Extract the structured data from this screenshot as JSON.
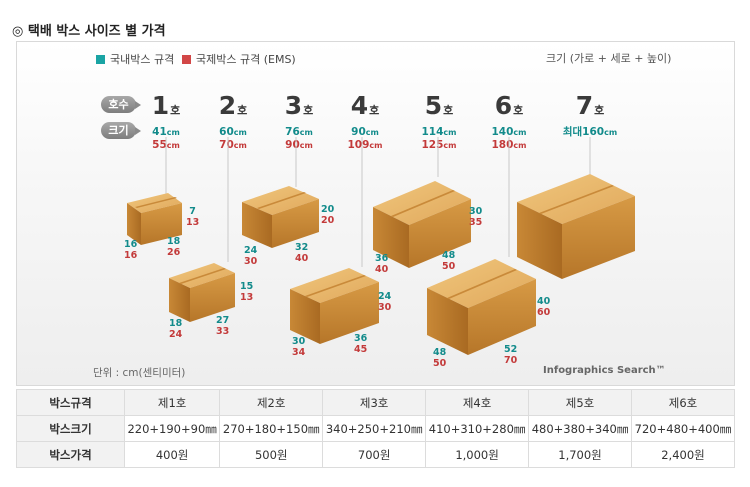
{
  "title": "◎ 택배 박스 사이즈 별 가격",
  "legend": {
    "domestic": {
      "label": "국내박스 규격",
      "color": "#1aa4a4"
    },
    "international": {
      "label": "국제박스 규격 (EMS)",
      "color": "#d24646"
    }
  },
  "measure_note": "크기 (가로 + 세로 + 높이)",
  "row_tags": {
    "number": "호수",
    "size": "크기"
  },
  "sizes": [
    {
      "num": "1",
      "suffix": "호",
      "prefix": "",
      "dom": "41",
      "ems": "55",
      "unit": "cm"
    },
    {
      "num": "2",
      "suffix": "호",
      "prefix": "",
      "dom": "60",
      "ems": "70",
      "unit": "cm"
    },
    {
      "num": "3",
      "suffix": "호",
      "prefix": "",
      "dom": "76",
      "ems": "90",
      "unit": "cm"
    },
    {
      "num": "4",
      "suffix": "호",
      "prefix": "",
      "dom": "90",
      "ems": "109",
      "unit": "cm"
    },
    {
      "num": "5",
      "suffix": "호",
      "prefix": "",
      "dom": "114",
      "ems": "125",
      "unit": "cm"
    },
    {
      "num": "6",
      "suffix": "호",
      "prefix": "",
      "dom": "140",
      "ems": "180",
      "unit": "cm"
    },
    {
      "num": "7",
      "suffix": "호",
      "prefix": "최대",
      "dom": "160",
      "ems": "",
      "unit": "cm"
    }
  ],
  "box_labels": {
    "b1": {
      "h": [
        "7",
        "13"
      ],
      "w": [
        "18",
        "26"
      ],
      "d": [
        "16",
        "16"
      ]
    },
    "b2": {
      "h": [
        "15",
        "13"
      ],
      "w": [
        "27",
        "33"
      ],
      "d": [
        "18",
        "24"
      ]
    },
    "b3": {
      "h": [
        "20",
        "20"
      ],
      "w": [
        "32",
        "40"
      ],
      "d": [
        "24",
        "30"
      ]
    },
    "b4": {
      "h": [
        "24",
        "30"
      ],
      "w": [
        "36",
        "45"
      ],
      "d": [
        "30",
        "34"
      ]
    },
    "b5": {
      "h": [
        "30",
        "35"
      ],
      "w": [
        "48",
        "50"
      ],
      "d": [
        "36",
        "40"
      ]
    },
    "b6": {
      "h": [
        "40",
        "60"
      ],
      "w": [
        "52",
        "70"
      ],
      "d": [
        "48",
        "50"
      ]
    }
  },
  "unit_note": "단위 : cm(센티미터)",
  "credit": "Infographics Search™",
  "table": {
    "headers": [
      "박스규격",
      "제1호",
      "제2호",
      "제3호",
      "제4호",
      "제5호",
      "제6호"
    ],
    "rows": [
      {
        "label": "박스크기",
        "cells": [
          "220+190+90㎜",
          "270+180+150㎜",
          "340+250+210㎜",
          "410+310+280㎜",
          "480+380+340㎜",
          "720+480+400㎜"
        ]
      },
      {
        "label": "박스가격",
        "cells": [
          "400원",
          "500원",
          "700원",
          "1,000원",
          "1,700원",
          "2,400원"
        ]
      }
    ]
  }
}
